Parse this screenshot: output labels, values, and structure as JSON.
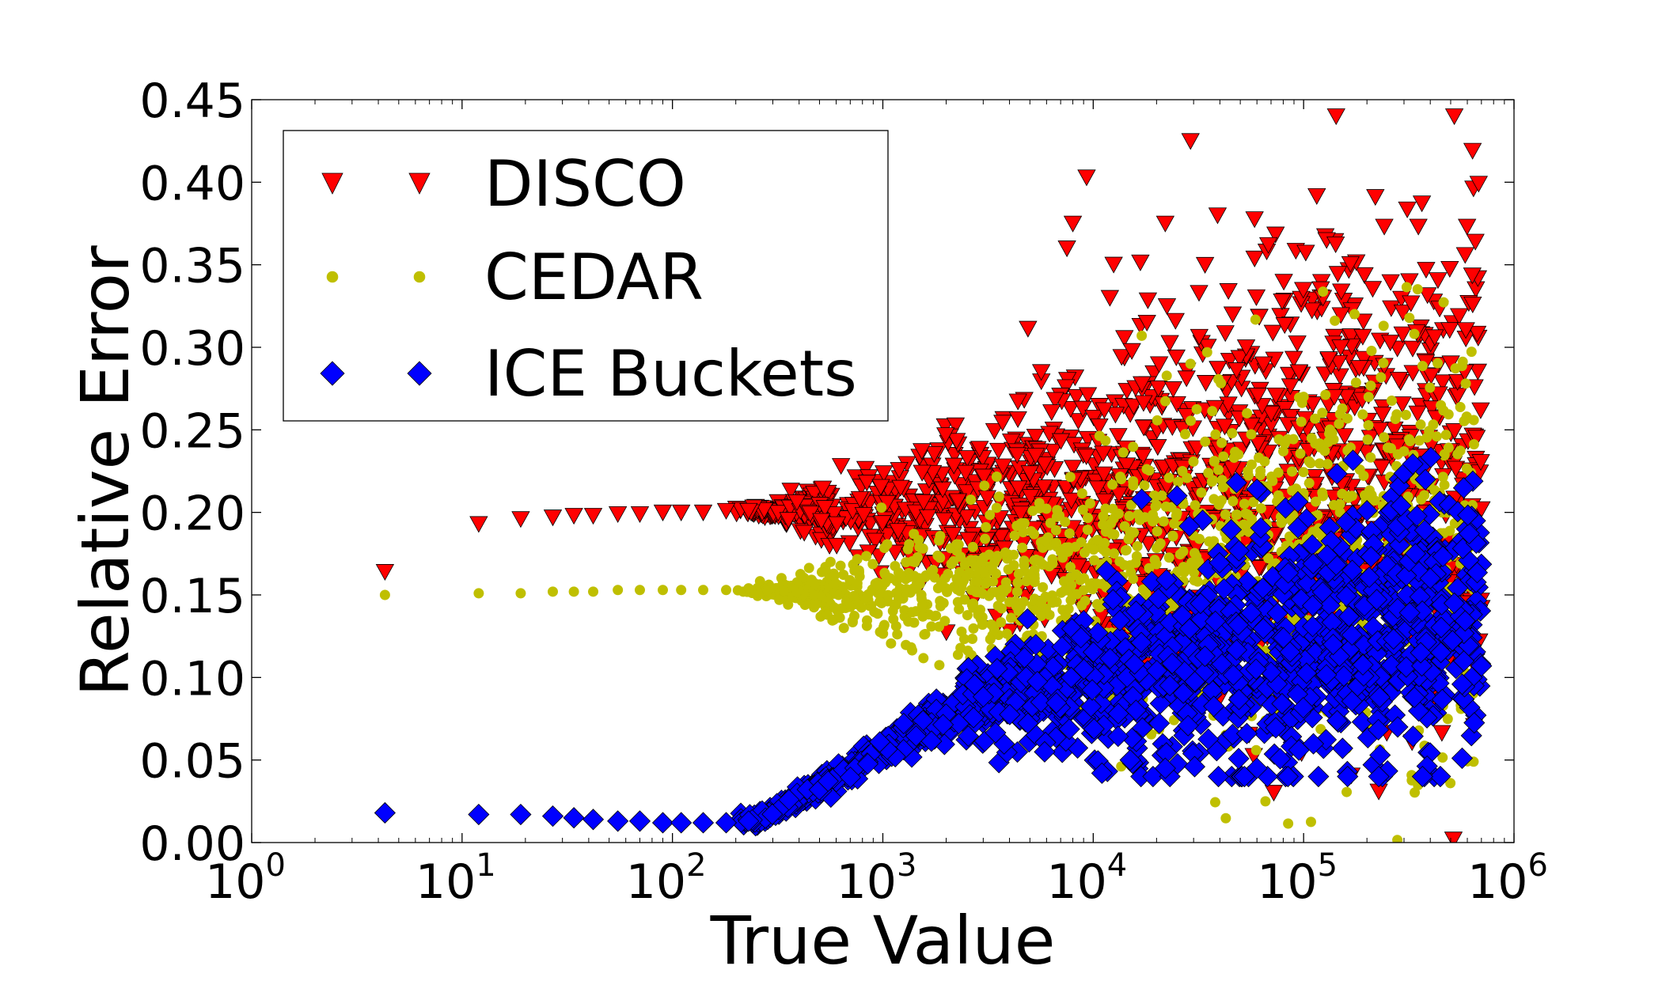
{
  "chart_data": {
    "type": "scatter",
    "title": "",
    "xlabel": "True Value",
    "ylabel": "Relative Error",
    "xscale": "log",
    "xlim": [
      1,
      1000000
    ],
    "ylim": [
      0.0,
      0.45
    ],
    "x_ticks": [
      {
        "base": "10",
        "exp": "0",
        "value": 1
      },
      {
        "base": "10",
        "exp": "1",
        "value": 10
      },
      {
        "base": "10",
        "exp": "2",
        "value": 100
      },
      {
        "base": "10",
        "exp": "3",
        "value": 1000
      },
      {
        "base": "10",
        "exp": "4",
        "value": 10000
      },
      {
        "base": "10",
        "exp": "5",
        "value": 100000
      },
      {
        "base": "10",
        "exp": "6",
        "value": 1000000
      }
    ],
    "y_ticks": [
      {
        "label": "0.00",
        "value": 0.0
      },
      {
        "label": "0.05",
        "value": 0.05
      },
      {
        "label": "0.10",
        "value": 0.1
      },
      {
        "label": "0.15",
        "value": 0.15
      },
      {
        "label": "0.20",
        "value": 0.2
      },
      {
        "label": "0.25",
        "value": 0.25
      },
      {
        "label": "0.30",
        "value": 0.3
      },
      {
        "label": "0.35",
        "value": 0.35
      },
      {
        "label": "0.40",
        "value": 0.4
      },
      {
        "label": "0.45",
        "value": 0.45
      }
    ],
    "grid": false,
    "legend_position": "top-left",
    "series": [
      {
        "name": "DISCO",
        "marker": "triangle-down",
        "color": "#ff0000",
        "edge_color": "#000000",
        "pattern": {
          "base": 0.2,
          "spread_start_x": 300,
          "spread_growth": 0.05,
          "spread_max": 0.14,
          "count": 1400,
          "x_max": 700000
        },
        "points": [
          [
            4.3,
            0.164
          ],
          [
            12,
            0.193
          ],
          [
            19,
            0.196
          ],
          [
            27,
            0.197
          ],
          [
            34,
            0.198
          ],
          [
            42,
            0.198
          ],
          [
            55,
            0.199
          ],
          [
            70,
            0.199
          ],
          [
            90,
            0.2
          ],
          [
            110,
            0.2
          ],
          [
            140,
            0.2
          ],
          [
            180,
            0.201
          ],
          [
            230,
            0.201
          ],
          [
            9300,
            0.403
          ],
          [
            29000,
            0.425
          ],
          [
            39000,
            0.38
          ],
          [
            22000,
            0.375
          ],
          [
            8000,
            0.375
          ],
          [
            7500,
            0.36
          ],
          [
            12000,
            0.33
          ],
          [
            18000,
            0.315
          ],
          [
            34000,
            0.35
          ],
          [
            46000,
            0.32
          ],
          [
            68000,
            0.362
          ],
          [
            95000,
            0.285
          ],
          [
            150000,
            0.3
          ],
          [
            160000,
            0.27
          ],
          [
            230000,
            0.25
          ],
          [
            280000,
            0.24
          ],
          [
            190000,
            0.2
          ],
          [
            380000,
            0.2
          ],
          [
            480000,
            0.182
          ],
          [
            700000,
            0.202
          ],
          [
            300000,
            0.21
          ],
          [
            140000,
            0.27
          ]
        ]
      },
      {
        "name": "CEDAR",
        "marker": "circle",
        "color": "#bfbf00",
        "edge_color": "#bfbf00",
        "pattern": {
          "base": 0.152,
          "spread_start_x": 300,
          "spread_growth": 0.04,
          "spread_max": 0.11,
          "count": 1400,
          "x_max": 650000
        },
        "points": [
          [
            4.3,
            0.15
          ],
          [
            12,
            0.151
          ],
          [
            19,
            0.151
          ],
          [
            27,
            0.152
          ],
          [
            34,
            0.152
          ],
          [
            42,
            0.152
          ],
          [
            55,
            0.153
          ],
          [
            70,
            0.153
          ],
          [
            90,
            0.153
          ],
          [
            110,
            0.153
          ],
          [
            140,
            0.153
          ],
          [
            180,
            0.153
          ],
          [
            230,
            0.154
          ],
          [
            240000,
            0.313
          ],
          [
            17000,
            0.307
          ],
          [
            29000,
            0.29
          ],
          [
            100000,
            0.27
          ],
          [
            300000,
            0.237
          ],
          [
            330000,
            0.185
          ],
          [
            640000,
            0.135
          ],
          [
            560000,
            0.081
          ],
          [
            250000,
            0.18
          ],
          [
            170000,
            0.21
          ],
          [
            140000,
            0.13
          ]
        ]
      },
      {
        "name": "ICE Buckets",
        "marker": "diamond",
        "color": "#0000ff",
        "edge_color": "#000000",
        "pattern": {
          "curve": "low-flat-then-rise",
          "count": 1600,
          "x_max": 700000
        },
        "points": [
          [
            4.3,
            0.018
          ],
          [
            12,
            0.017
          ],
          [
            19,
            0.017
          ],
          [
            27,
            0.016
          ],
          [
            34,
            0.015
          ],
          [
            42,
            0.014
          ],
          [
            55,
            0.013
          ],
          [
            70,
            0.013
          ],
          [
            90,
            0.012
          ],
          [
            110,
            0.012
          ],
          [
            140,
            0.012
          ],
          [
            180,
            0.012
          ],
          [
            230,
            0.013
          ],
          [
            48000,
            0.218
          ],
          [
            60000,
            0.214
          ],
          [
            25000,
            0.21
          ],
          [
            17000,
            0.208
          ],
          [
            290000,
            0.204
          ],
          [
            200000,
            0.201
          ],
          [
            340000,
            0.175
          ],
          [
            400000,
            0.16
          ],
          [
            520000,
            0.145
          ],
          [
            700000,
            0.107
          ],
          [
            360000,
            0.115
          ],
          [
            280000,
            0.07
          ],
          [
            11000,
            0.042
          ],
          [
            15000,
            0.05
          ],
          [
            22000,
            0.045
          ],
          [
            60000,
            0.045
          ],
          [
            95000,
            0.056
          ],
          [
            230000,
            0.088
          ]
        ]
      }
    ]
  }
}
